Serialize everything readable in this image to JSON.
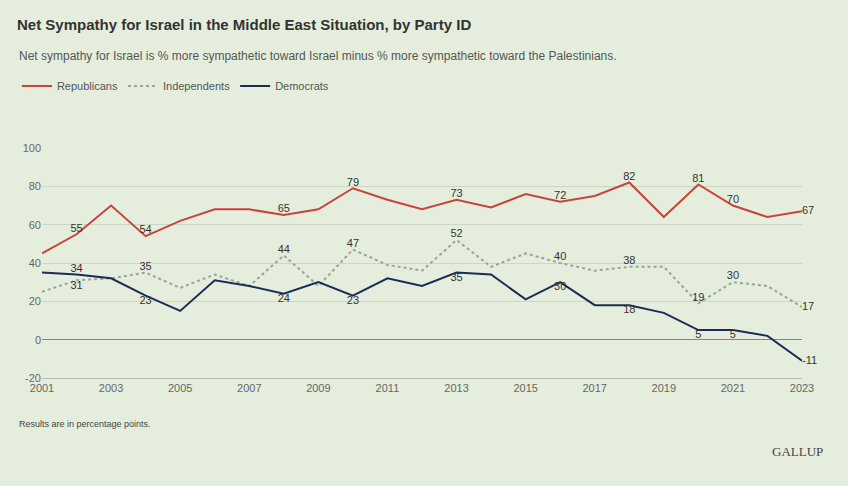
{
  "chart_data": {
    "type": "line",
    "title": "Net Sympathy for Israel in the Middle East Situation, by Party ID",
    "subtitle": "Net sympathy for Israel is % more sympathetic toward Israel minus % more sympathetic toward the Palestinians.",
    "annotations": [
      "Results are in percentage points.",
      "GALLUP"
    ],
    "x": [
      2001,
      2002,
      2003,
      2004,
      2005,
      2006,
      2007,
      2008,
      2009,
      2010,
      2011,
      2012,
      2013,
      2014,
      2015,
      2016,
      2017,
      2018,
      2019,
      2020,
      2021,
      2022,
      2023
    ],
    "series": [
      {
        "name": "Republicans",
        "color": "#c8443a",
        "line_style": "solid",
        "values": [
          45,
          55,
          70,
          54,
          62,
          68,
          68,
          65,
          68,
          79,
          73,
          68,
          73,
          69,
          76,
          72,
          75,
          82,
          64,
          81,
          70,
          64,
          67
        ],
        "value_labels": [
          null,
          "55",
          null,
          "54",
          null,
          null,
          null,
          "65",
          null,
          "79",
          null,
          null,
          "73",
          null,
          null,
          "72",
          null,
          "82",
          null,
          "81",
          "70",
          null,
          "67"
        ]
      },
      {
        "name": "Independents",
        "color": "#98a596",
        "line_style": "dotted",
        "values": [
          25,
          31,
          32,
          35,
          27,
          34,
          28,
          44,
          28,
          47,
          39,
          36,
          52,
          38,
          45,
          40,
          36,
          38,
          38,
          19,
          30,
          28,
          17
        ],
        "value_labels": [
          null,
          "31",
          null,
          "35",
          null,
          null,
          null,
          "44",
          null,
          "47",
          null,
          null,
          "52",
          null,
          null,
          "40",
          null,
          "38",
          null,
          "19",
          "30",
          null,
          "17"
        ]
      },
      {
        "name": "Democrats",
        "color": "#1c2b57",
        "line_style": "solid",
        "values": [
          35,
          34,
          32,
          23,
          15,
          31,
          28,
          24,
          30,
          23,
          32,
          28,
          35,
          34,
          21,
          30,
          18,
          18,
          14,
          5,
          5,
          2,
          -11
        ],
        "value_labels": [
          null,
          "34",
          null,
          "23",
          null,
          null,
          null,
          "24",
          null,
          "23",
          null,
          null,
          "35",
          null,
          null,
          "30",
          null,
          "18",
          null,
          "5",
          "5",
          null,
          "-11"
        ]
      }
    ],
    "xlim": [
      2001,
      2023
    ],
    "xticks": [
      2001,
      2003,
      2005,
      2007,
      2009,
      2011,
      2013,
      2015,
      2017,
      2019,
      2021,
      2023
    ],
    "ylim": [
      -20,
      100
    ],
    "yticks": [
      -20,
      0,
      20,
      40,
      60,
      80,
      100
    ],
    "grid": true,
    "legend": "top left",
    "data_labels": true
  }
}
